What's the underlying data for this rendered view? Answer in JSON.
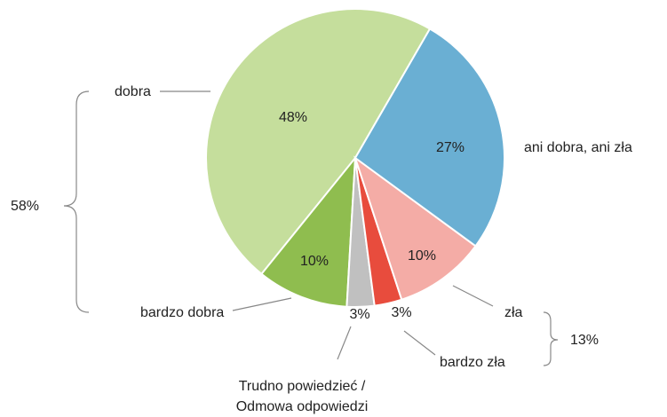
{
  "chart_data": {
    "type": "pie",
    "categories": [
      "ani dobra, ani zła",
      "zła",
      "bardzo zła",
      "Trudno powiedzieć / Odmowa odpowiedzi",
      "bardzo dobra",
      "dobra"
    ],
    "values": [
      27,
      10,
      3,
      3,
      10,
      48
    ],
    "value_labels": [
      "27%",
      "10%",
      "3%",
      "3%",
      "10%",
      "48%"
    ],
    "colors": [
      "#6aafd3",
      "#f4aca6",
      "#e84c3d",
      "#c0c0c0",
      "#8fbd4f",
      "#c5de9c"
    ],
    "groups": {
      "values": [
        58,
        13
      ],
      "value_labels": [
        "58%",
        "13%"
      ]
    }
  }
}
